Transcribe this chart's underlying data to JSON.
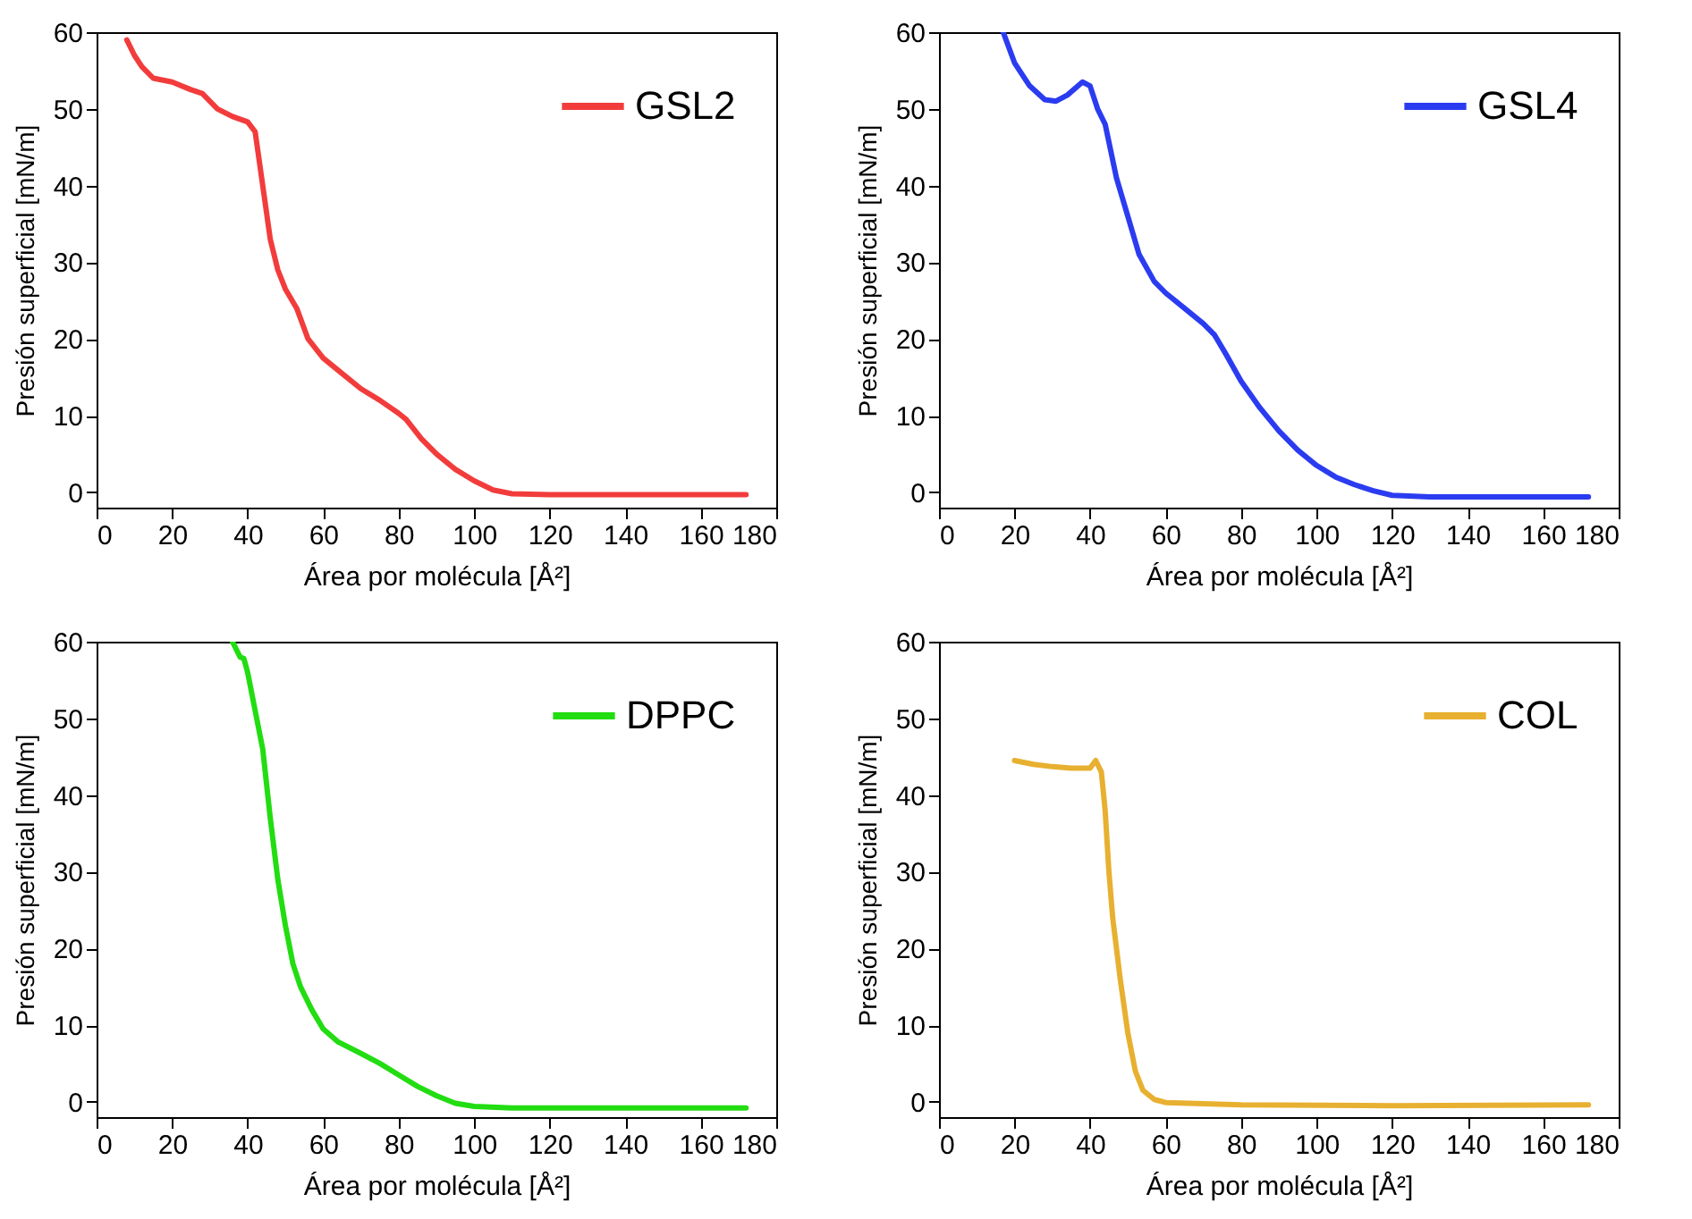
{
  "chart_data": [
    {
      "type": "line",
      "xlabel": "Área por molécula [Å²]",
      "ylabel": "Presión superficial [mN/m]",
      "xlim": [
        0,
        180
      ],
      "ylim": [
        -2,
        60
      ],
      "xticks": [
        0,
        20,
        40,
        60,
        80,
        100,
        120,
        140,
        160,
        180
      ],
      "yticks": [
        0,
        10,
        20,
        30,
        40,
        50,
        60
      ],
      "legend": "top right",
      "x": [
        8,
        10,
        12,
        15,
        20,
        25,
        28,
        32,
        36,
        40,
        42,
        44,
        46,
        48,
        50,
        53,
        56,
        60,
        65,
        70,
        75,
        80,
        82,
        86,
        90,
        95,
        100,
        105,
        110,
        120,
        140,
        160,
        172
      ],
      "series": [
        {
          "name": "GSL2",
          "color": "#f23c3c",
          "values": [
            59,
            57,
            55.5,
            54,
            53.5,
            52.5,
            52,
            50,
            49,
            48.3,
            47,
            40,
            33,
            29,
            26.5,
            24,
            20,
            17.5,
            15.5,
            13.5,
            12,
            10.3,
            9.5,
            7,
            5,
            3,
            1.5,
            0.3,
            -0.2,
            -0.3,
            -0.3,
            -0.3,
            -0.3
          ]
        }
      ]
    },
    {
      "type": "line",
      "xlabel": "Área por molécula [Å²]",
      "ylabel": "Presión superficial [mN/m]",
      "xlim": [
        0,
        180
      ],
      "ylim": [
        -2,
        60
      ],
      "xticks": [
        0,
        20,
        40,
        60,
        80,
        100,
        120,
        140,
        160,
        180
      ],
      "yticks": [
        0,
        10,
        20,
        30,
        40,
        50,
        60
      ],
      "legend": "top right",
      "x": [
        17,
        20,
        24,
        28,
        31,
        34,
        38,
        40,
        42,
        44,
        47,
        50,
        53,
        57,
        60,
        65,
        70,
        73,
        76,
        80,
        85,
        90,
        95,
        100,
        105,
        110,
        115,
        120,
        130,
        150,
        172
      ],
      "series": [
        {
          "name": "GSL4",
          "color": "#2b3cf0",
          "values": [
            60,
            56,
            53,
            51.2,
            51,
            51.8,
            53.5,
            53,
            50,
            48,
            41,
            36,
            31,
            27.5,
            26,
            24,
            22,
            20.5,
            18,
            14.5,
            11,
            8,
            5.5,
            3.5,
            2,
            1,
            0.2,
            -0.4,
            -0.6,
            -0.6,
            -0.6
          ]
        }
      ]
    },
    {
      "type": "line",
      "xlabel": "Área por molécula [Å²]",
      "ylabel": "Presión superficial [mN/m]",
      "xlim": [
        0,
        180
      ],
      "ylim": [
        -2,
        60
      ],
      "xticks": [
        0,
        20,
        40,
        60,
        80,
        100,
        120,
        140,
        160,
        180
      ],
      "yticks": [
        0,
        10,
        20,
        30,
        40,
        50,
        60
      ],
      "legend": "top right",
      "x": [
        36,
        37,
        38,
        39,
        40,
        42,
        44,
        46,
        48,
        50,
        52,
        54,
        57,
        60,
        64,
        70,
        75,
        80,
        85,
        90,
        95,
        100,
        110,
        130,
        150,
        172
      ],
      "series": [
        {
          "name": "DPPC",
          "color": "#22dd11",
          "values": [
            60,
            59,
            58,
            57.8,
            56,
            51,
            46,
            37,
            29,
            23,
            18,
            15,
            12,
            9.5,
            7.8,
            6.3,
            5,
            3.5,
            2,
            0.8,
            -0.2,
            -0.6,
            -0.8,
            -0.8,
            -0.8,
            -0.8
          ]
        }
      ]
    },
    {
      "type": "line",
      "xlabel": "Área por molécula [Å²]",
      "ylabel": "Presión superficial [mN/m]",
      "xlim": [
        0,
        180
      ],
      "ylim": [
        -2,
        60
      ],
      "xticks": [
        0,
        20,
        40,
        60,
        80,
        100,
        120,
        140,
        160,
        180
      ],
      "yticks": [
        0,
        10,
        20,
        30,
        40,
        50,
        60
      ],
      "legend": "top right",
      "x": [
        20,
        25,
        30,
        35,
        40,
        41.5,
        43,
        44,
        45,
        46,
        48,
        50,
        52,
        54,
        57,
        60,
        80,
        120,
        172
      ],
      "series": [
        {
          "name": "COL",
          "color": "#e8b030",
          "values": [
            44.5,
            44,
            43.7,
            43.5,
            43.5,
            44.5,
            43,
            38,
            30,
            24,
            16,
            9,
            4,
            1.5,
            0.3,
            -0.1,
            -0.4,
            -0.5,
            -0.4
          ]
        }
      ]
    }
  ]
}
